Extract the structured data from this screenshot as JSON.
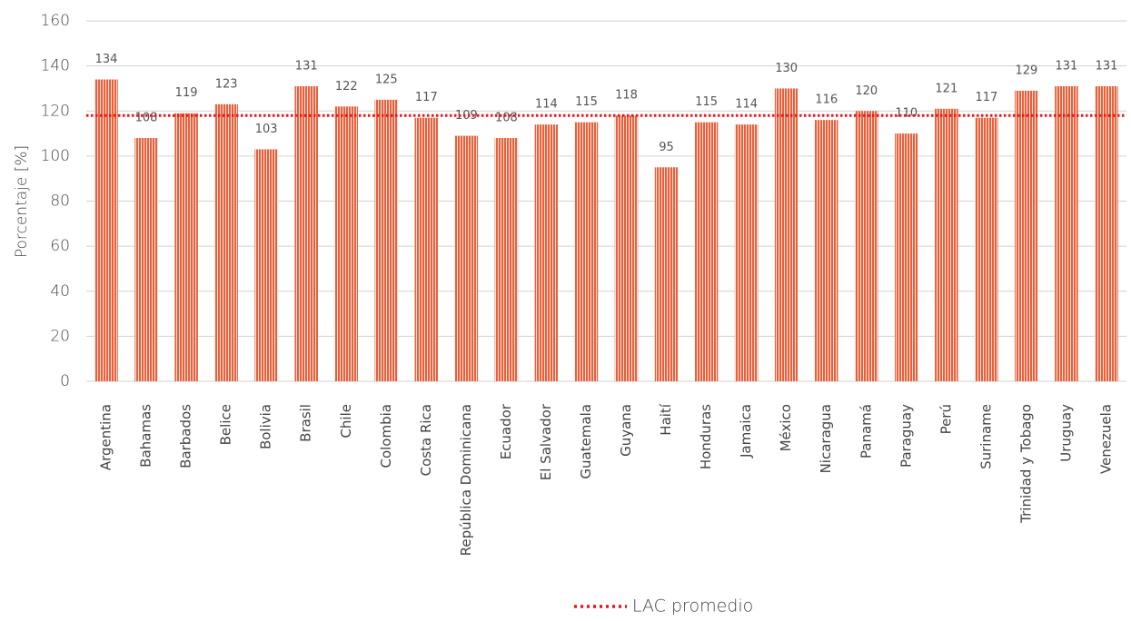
{
  "chart_data": {
    "type": "bar",
    "ylabel": "Porcentaje [%]",
    "categories": [
      "Argentina",
      "Bahamas",
      "Barbados",
      "Belice",
      "Bolivia",
      "Brasil",
      "Chile",
      "Colombia",
      "Costa Rica",
      "República Dominicana",
      "Ecuador",
      "El Salvador",
      "Guatemala",
      "Guyana",
      "Haití",
      "Honduras",
      "Jamaica",
      "México",
      "Nicaragua",
      "Panamá",
      "Paraguay",
      "Perú",
      "Suriname",
      "Trinidad y Tobago",
      "Uruguay",
      "Venezuela"
    ],
    "values": [
      134,
      108,
      119,
      123,
      103,
      131,
      122,
      125,
      117,
      109,
      108,
      114,
      115,
      118,
      95,
      115,
      114,
      130,
      116,
      120,
      110,
      121,
      117,
      129,
      131,
      131
    ],
    "color": "#e8603c",
    "ylim": [
      0,
      160
    ],
    "yticks": [
      0,
      20,
      40,
      60,
      80,
      100,
      120,
      140,
      160
    ],
    "grid": true,
    "average": {
      "name": "LAC promedio",
      "value": 118,
      "color": "#e8141c"
    }
  }
}
